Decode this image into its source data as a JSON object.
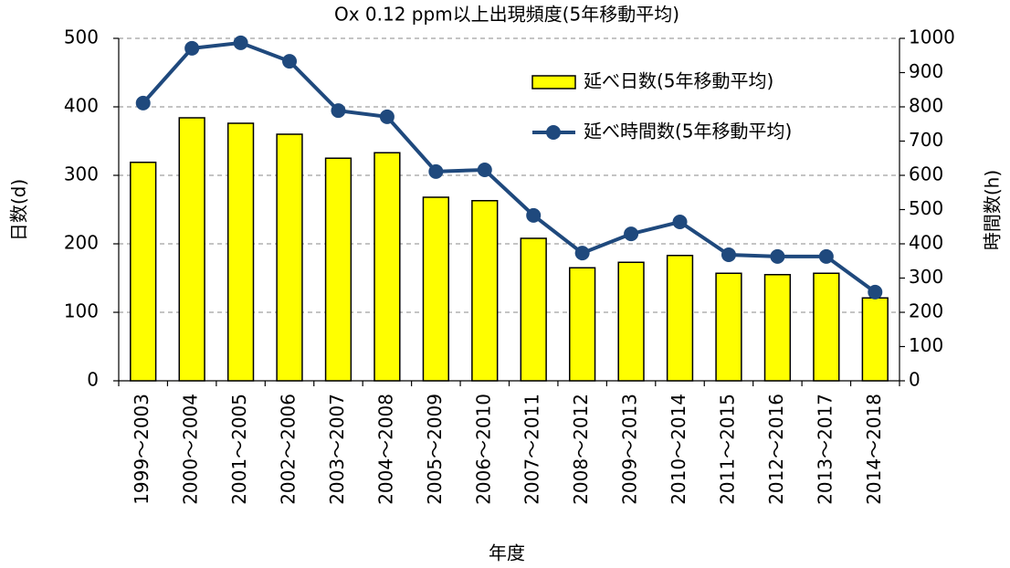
{
  "chart_data": {
    "type": "bar_line",
    "title": "Ox 0.12 ppm以上出現頻度(5年移動平均)",
    "x_label": "年度",
    "y_label": "日数(d)",
    "y2_label": "時間数(h)",
    "categories": [
      "1999～2003",
      "2000～2004",
      "2001～2005",
      "2002～2006",
      "2003～2007",
      "2004～2008",
      "2005～2009",
      "2006～2010",
      "2007～2011",
      "2008～2012",
      "2009～2013",
      "2010～2014",
      "2011～2015",
      "2012～2016",
      "2013～2017",
      "2014～2018"
    ],
    "series": [
      {
        "name": "延べ日数(5年移動平均)",
        "type": "bar",
        "color": "#ffff00",
        "values": [
          319,
          384,
          376,
          360,
          325,
          333,
          268,
          263,
          208,
          165,
          173,
          183,
          157,
          155,
          157,
          121
        ]
      },
      {
        "name": "延べ時間数(5年移動平均)",
        "type": "line",
        "axis": "y2",
        "color": "#1f497d",
        "values": [
          811,
          971,
          987,
          933,
          789,
          771,
          611,
          616,
          483,
          373,
          429,
          464,
          368,
          363,
          363,
          259
        ]
      }
    ],
    "ylim": [
      0,
      500
    ],
    "yticks": [
      0,
      100,
      200,
      300,
      400,
      500
    ],
    "y2lim": [
      0,
      1000
    ],
    "y2ticks": [
      0,
      100,
      200,
      300,
      400,
      500,
      600,
      700,
      800,
      900,
      1000
    ],
    "grid": true,
    "legend": "upper right"
  }
}
